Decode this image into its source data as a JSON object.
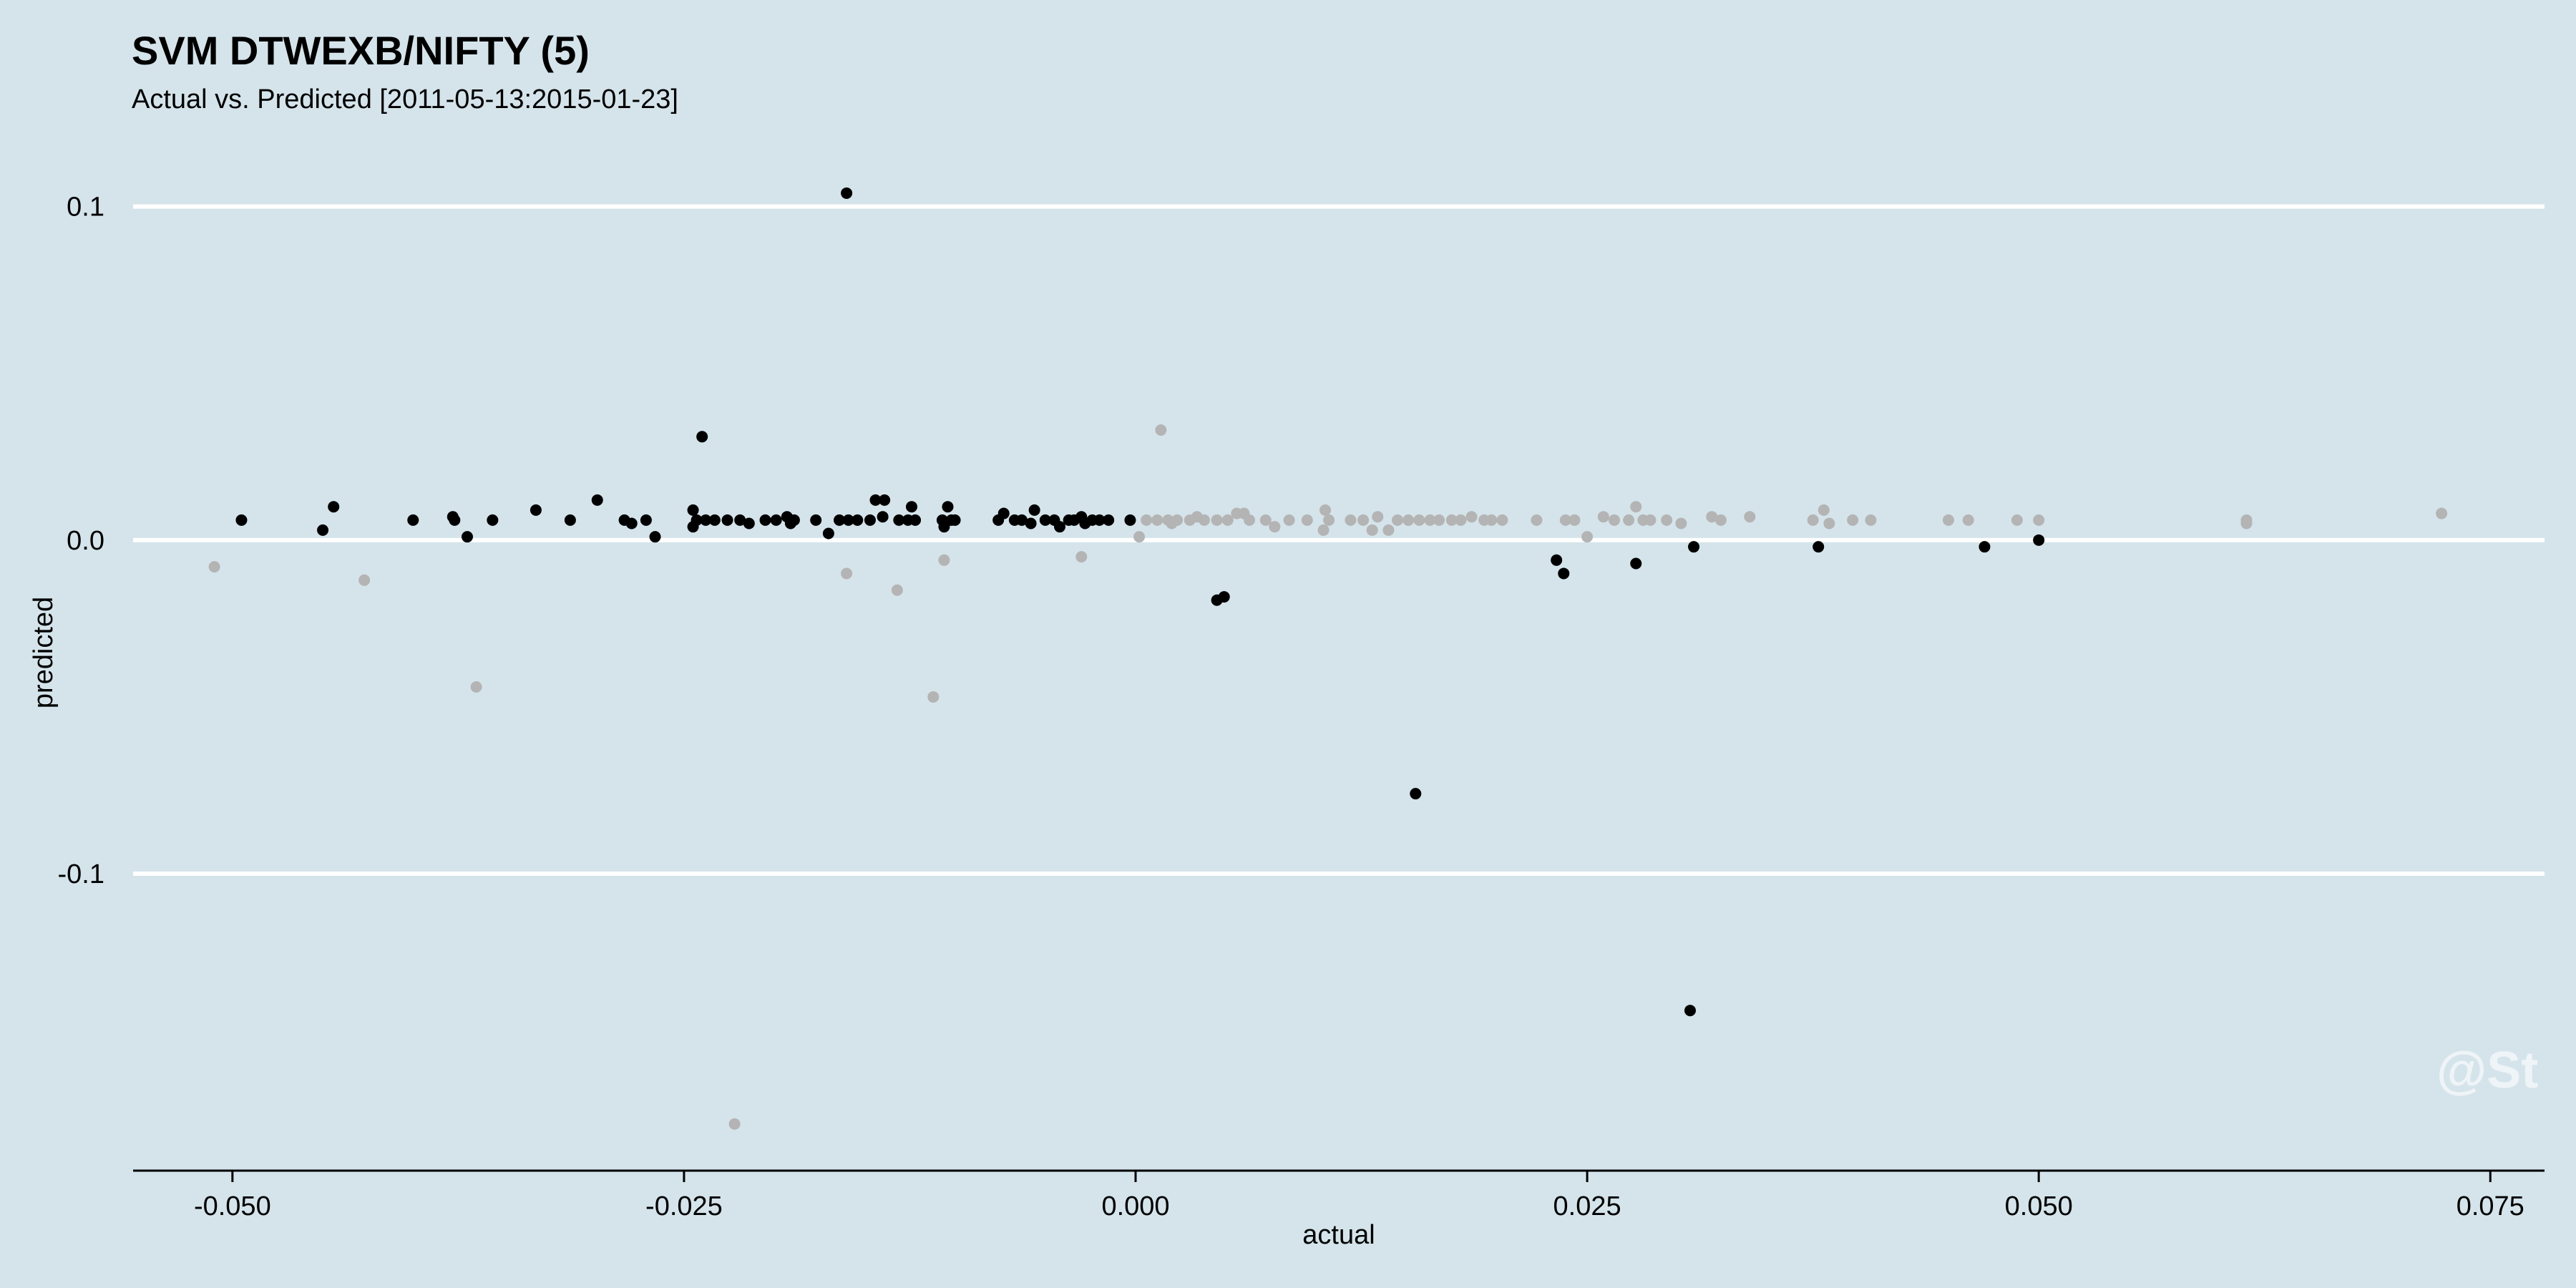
{
  "chart_data": {
    "type": "scatter",
    "title": "SVM DTWEXB/NIFTY (5)",
    "subtitle": "Actual vs. Predicted [2011-05-13:2015-01-23]",
    "xlabel": "actual",
    "ylabel": "predicted",
    "xlim": [
      -0.0555,
      0.078
    ],
    "ylim": [
      -0.189,
      0.113
    ],
    "xticks": [
      -0.05,
      -0.025,
      0.0,
      0.025,
      0.05,
      0.075
    ],
    "xtick_labels": [
      "-0.050",
      "-0.025",
      "0.000",
      "0.025",
      "0.050",
      "0.075"
    ],
    "yticks": [
      0.1,
      0.0,
      -0.1
    ],
    "ytick_labels": [
      "0.1",
      "0.0",
      "-0.1"
    ],
    "grid": "horizontal",
    "watermark": "@St",
    "colors": {
      "background": "#d5e4eb",
      "grid": "#ffffff",
      "series_dark": "#000000",
      "series_light": "#b4b4b4"
    },
    "series": [
      {
        "color": "#000000",
        "points": [
          [
            -0.0495,
            0.006
          ],
          [
            -0.045,
            0.003
          ],
          [
            -0.0444,
            0.01
          ],
          [
            -0.04,
            0.006
          ],
          [
            -0.0378,
            0.007
          ],
          [
            -0.0377,
            0.006
          ],
          [
            -0.037,
            0.001
          ],
          [
            -0.0356,
            0.006
          ],
          [
            -0.0332,
            0.009
          ],
          [
            -0.0313,
            0.006
          ],
          [
            -0.0298,
            0.012
          ],
          [
            -0.0283,
            0.006
          ],
          [
            -0.0279,
            0.005
          ],
          [
            -0.0271,
            0.006
          ],
          [
            -0.0266,
            0.001
          ],
          [
            -0.0245,
            0.009
          ],
          [
            -0.0245,
            0.004
          ],
          [
            -0.0243,
            0.006
          ],
          [
            -0.024,
            0.031
          ],
          [
            -0.0238,
            0.006
          ],
          [
            -0.0233,
            0.006
          ],
          [
            -0.0226,
            0.006
          ],
          [
            -0.0219,
            0.006
          ],
          [
            -0.0214,
            0.005
          ],
          [
            -0.0205,
            0.006
          ],
          [
            -0.0199,
            0.006
          ],
          [
            -0.0193,
            0.007
          ],
          [
            -0.0191,
            0.005
          ],
          [
            -0.0189,
            0.006
          ],
          [
            -0.0177,
            0.006
          ],
          [
            -0.017,
            0.002
          ],
          [
            -0.0164,
            0.006
          ],
          [
            -0.016,
            0.104
          ],
          [
            -0.0159,
            0.006
          ],
          [
            -0.0154,
            0.006
          ],
          [
            -0.0147,
            0.006
          ],
          [
            -0.0144,
            0.012
          ],
          [
            -0.014,
            0.007
          ],
          [
            -0.0139,
            0.012
          ],
          [
            -0.0131,
            0.006
          ],
          [
            -0.0126,
            0.006
          ],
          [
            -0.0124,
            0.01
          ],
          [
            -0.0122,
            0.006
          ],
          [
            -0.0107,
            0.006
          ],
          [
            -0.0106,
            0.004
          ],
          [
            -0.0104,
            0.01
          ],
          [
            -0.0102,
            0.006
          ],
          [
            -0.01,
            0.006
          ],
          [
            -0.0076,
            0.006
          ],
          [
            -0.0073,
            0.008
          ],
          [
            -0.0067,
            0.006
          ],
          [
            -0.0063,
            0.006
          ],
          [
            -0.0058,
            0.005
          ],
          [
            -0.0056,
            0.009
          ],
          [
            -0.005,
            0.006
          ],
          [
            -0.0045,
            0.006
          ],
          [
            -0.0042,
            0.004
          ],
          [
            -0.0037,
            0.006
          ],
          [
            -0.0034,
            0.006
          ],
          [
            -0.003,
            0.007
          ],
          [
            -0.0028,
            0.005
          ],
          [
            -0.0024,
            0.006
          ],
          [
            -0.002,
            0.006
          ],
          [
            -0.0015,
            0.006
          ],
          [
            -0.0003,
            0.006
          ],
          [
            0.0045,
            -0.018
          ],
          [
            0.0049,
            -0.017
          ],
          [
            0.0155,
            -0.076
          ],
          [
            0.0233,
            -0.006
          ],
          [
            0.0237,
            -0.01
          ],
          [
            0.0277,
            -0.007
          ],
          [
            0.0307,
            -0.141
          ],
          [
            0.0309,
            -0.002
          ],
          [
            0.0378,
            -0.002
          ],
          [
            0.047,
            -0.002
          ],
          [
            0.05,
            0.0
          ]
        ]
      },
      {
        "color": "#b4b4b4",
        "points": [
          [
            -0.051,
            -0.008
          ],
          [
            -0.0427,
            -0.012
          ],
          [
            -0.0365,
            -0.044
          ],
          [
            -0.0222,
            -0.175
          ],
          [
            -0.016,
            -0.01
          ],
          [
            -0.0132,
            -0.015
          ],
          [
            -0.0112,
            -0.047
          ],
          [
            -0.0106,
            -0.006
          ],
          [
            -0.003,
            -0.005
          ],
          [
            0.0002,
            0.001
          ],
          [
            0.0006,
            0.006
          ],
          [
            0.0012,
            0.006
          ],
          [
            0.0014,
            0.033
          ],
          [
            0.0018,
            0.006
          ],
          [
            0.002,
            0.005
          ],
          [
            0.0023,
            0.006
          ],
          [
            0.003,
            0.006
          ],
          [
            0.0034,
            0.007
          ],
          [
            0.0038,
            0.006
          ],
          [
            0.0045,
            0.006
          ],
          [
            0.0051,
            0.006
          ],
          [
            0.0056,
            0.008
          ],
          [
            0.006,
            0.008
          ],
          [
            0.0063,
            0.006
          ],
          [
            0.0072,
            0.006
          ],
          [
            0.0077,
            0.004
          ],
          [
            0.0085,
            0.006
          ],
          [
            0.0095,
            0.006
          ],
          [
            0.0104,
            0.003
          ],
          [
            0.0105,
            0.009
          ],
          [
            0.0107,
            0.006
          ],
          [
            0.0119,
            0.006
          ],
          [
            0.0126,
            0.006
          ],
          [
            0.0131,
            0.003
          ],
          [
            0.0134,
            0.007
          ],
          [
            0.014,
            0.003
          ],
          [
            0.0145,
            0.006
          ],
          [
            0.0151,
            0.006
          ],
          [
            0.0157,
            0.006
          ],
          [
            0.0163,
            0.006
          ],
          [
            0.0168,
            0.006
          ],
          [
            0.0175,
            0.006
          ],
          [
            0.018,
            0.006
          ],
          [
            0.0186,
            0.007
          ],
          [
            0.0193,
            0.006
          ],
          [
            0.0197,
            0.006
          ],
          [
            0.0203,
            0.006
          ],
          [
            0.0222,
            0.006
          ],
          [
            0.0238,
            0.006
          ],
          [
            0.0243,
            0.006
          ],
          [
            0.025,
            0.001
          ],
          [
            0.0259,
            0.007
          ],
          [
            0.0265,
            0.006
          ],
          [
            0.0273,
            0.006
          ],
          [
            0.0277,
            0.01
          ],
          [
            0.0281,
            0.006
          ],
          [
            0.0285,
            0.006
          ],
          [
            0.0294,
            0.006
          ],
          [
            0.0302,
            0.005
          ],
          [
            0.0319,
            0.007
          ],
          [
            0.0324,
            0.006
          ],
          [
            0.034,
            0.007
          ],
          [
            0.0375,
            0.006
          ],
          [
            0.0381,
            0.009
          ],
          [
            0.0384,
            0.005
          ],
          [
            0.0397,
            0.006
          ],
          [
            0.0407,
            0.006
          ],
          [
            0.045,
            0.006
          ],
          [
            0.0461,
            0.006
          ],
          [
            0.0488,
            0.006
          ],
          [
            0.05,
            0.006
          ],
          [
            0.0615,
            0.005
          ],
          [
            0.0615,
            0.006
          ],
          [
            0.0723,
            0.008
          ]
        ]
      }
    ]
  }
}
